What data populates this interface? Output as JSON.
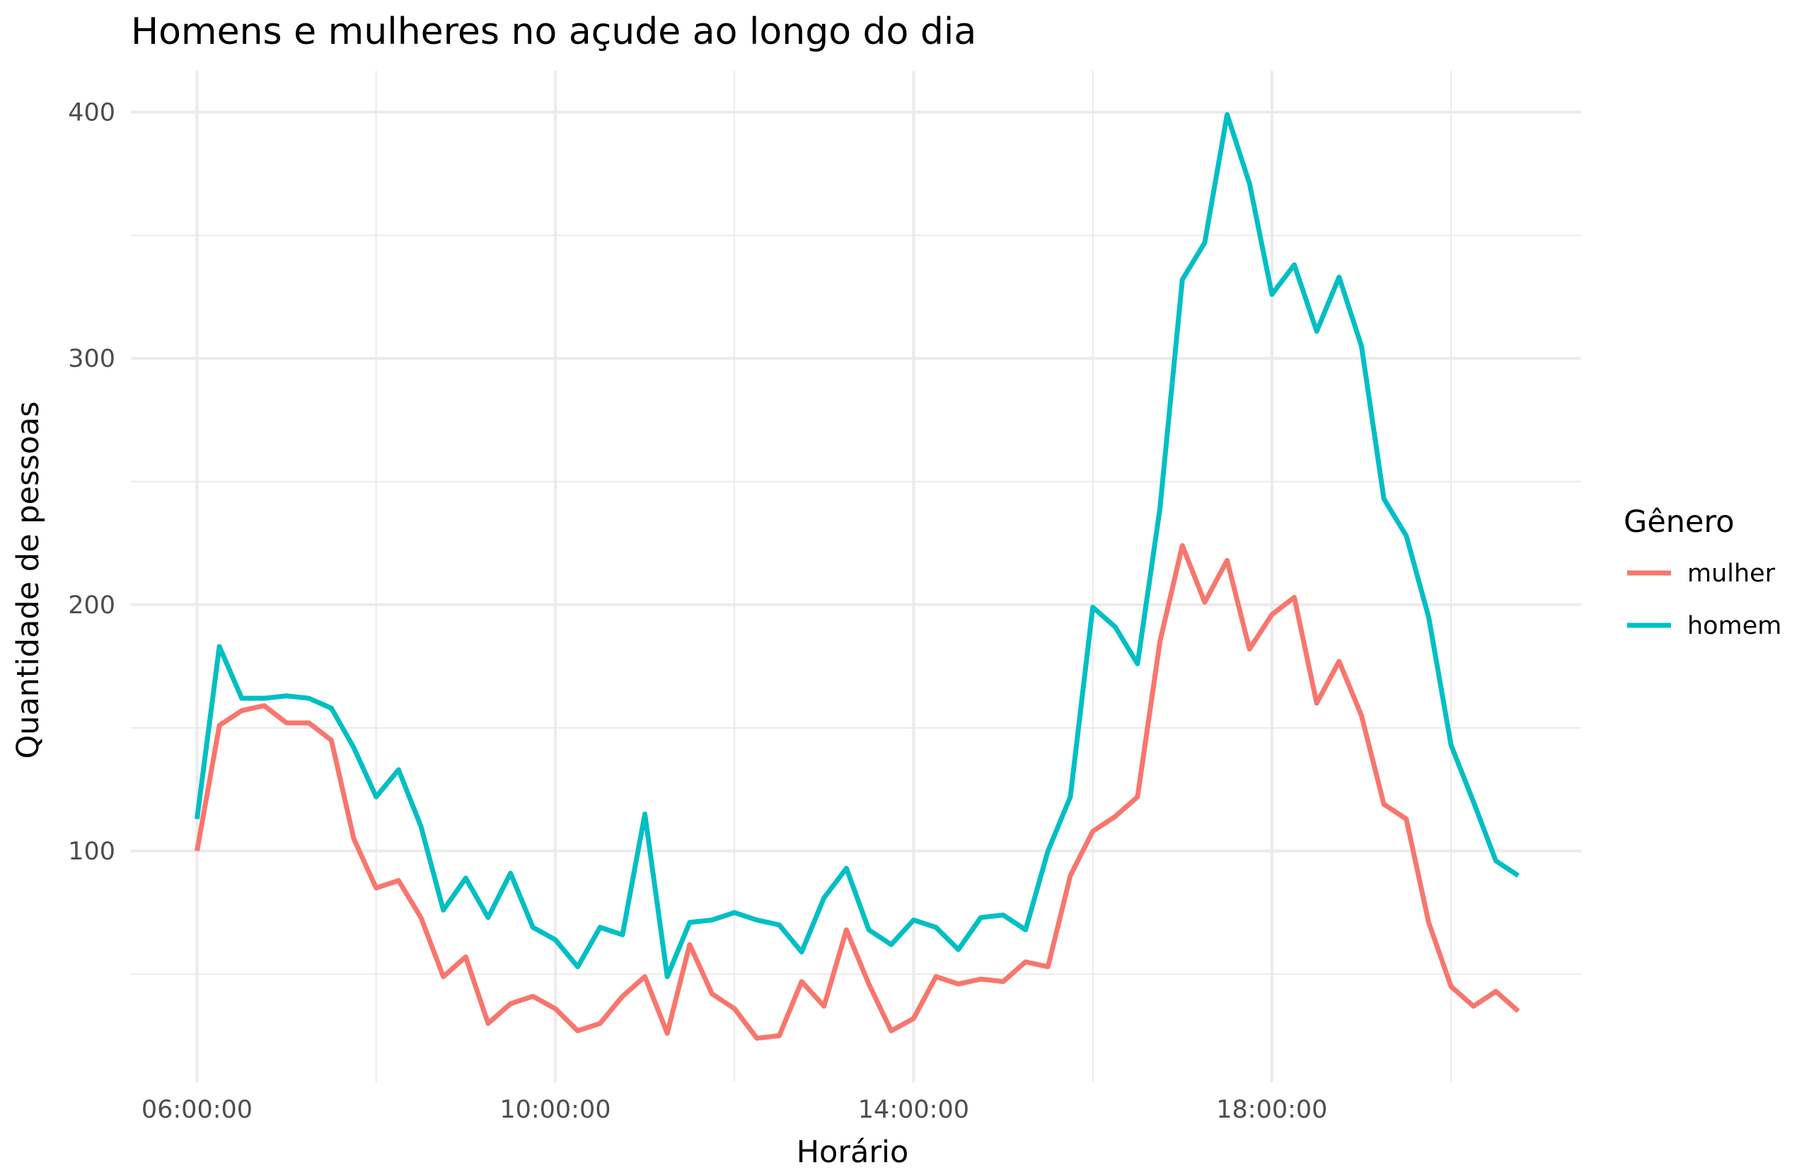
{
  "chart_data": {
    "type": "line",
    "title": "Homens e mulheres no açude ao longo do dia",
    "xlabel": "Horário",
    "ylabel": "Quantidade de pessoas",
    "x_unit": "hours",
    "x_tick_labels": [
      "06:00:00",
      "10:00:00",
      "14:00:00",
      "18:00:00"
    ],
    "x_ticks": [
      6,
      10,
      14,
      18
    ],
    "x_minor_ticks": [
      8,
      12,
      16,
      20
    ],
    "xlim": [
      5.2619,
      21.4524
    ],
    "y_ticks": [
      100,
      200,
      300,
      400
    ],
    "y_minor_ticks": [
      50,
      150,
      250,
      350
    ],
    "ylim": [
      6.1,
      416.8
    ],
    "grid": true,
    "legend": {
      "title": "Gênero",
      "position": "right"
    },
    "x": [
      6.0,
      6.25,
      6.5,
      6.75,
      7.0,
      7.25,
      7.5,
      7.75,
      8.0,
      8.25,
      8.5,
      8.75,
      9.0,
      9.25,
      9.5,
      9.75,
      10.0,
      10.25,
      10.5,
      10.75,
      11.0,
      11.25,
      11.5,
      11.75,
      12.0,
      12.25,
      12.5,
      12.75,
      13.0,
      13.25,
      13.5,
      13.75,
      14.0,
      14.25,
      14.5,
      14.75,
      15.0,
      15.25,
      15.5,
      15.75,
      16.0,
      16.25,
      16.5,
      16.75,
      17.0,
      17.25,
      17.5,
      17.75,
      18.0,
      18.25,
      18.5,
      18.75,
      19.0,
      19.25,
      19.5,
      19.75,
      20.0,
      20.25,
      20.5,
      20.75
    ],
    "series": [
      {
        "name": "mulher",
        "color": "#F8766D",
        "values": [
          100,
          151,
          157,
          159,
          152,
          152,
          145,
          105,
          85,
          88,
          73,
          49,
          57,
          30,
          38,
          41,
          36,
          27,
          30,
          41,
          49,
          26,
          62,
          42,
          36,
          24,
          25,
          47,
          37,
          68,
          46,
          27,
          32,
          49,
          46,
          48,
          47,
          55,
          53,
          90,
          108,
          114,
          122,
          185,
          224,
          201,
          218,
          182,
          196,
          203,
          160,
          177,
          155,
          119,
          113,
          71,
          45,
          37,
          43,
          35
        ]
      },
      {
        "name": "homem",
        "color": "#00BFC4",
        "values": [
          113,
          183,
          162,
          162,
          163,
          162,
          158,
          142,
          122,
          133,
          110,
          76,
          89,
          73,
          91,
          69,
          64,
          53,
          69,
          66,
          115,
          49,
          71,
          72,
          75,
          72,
          70,
          59,
          81,
          93,
          68,
          62,
          72,
          69,
          60,
          73,
          74,
          68,
          100,
          122,
          199,
          191,
          176,
          239,
          332,
          347,
          399,
          371,
          326,
          338,
          311,
          333,
          305,
          243,
          228,
          195,
          143,
          120,
          96,
          90
        ]
      }
    ]
  }
}
